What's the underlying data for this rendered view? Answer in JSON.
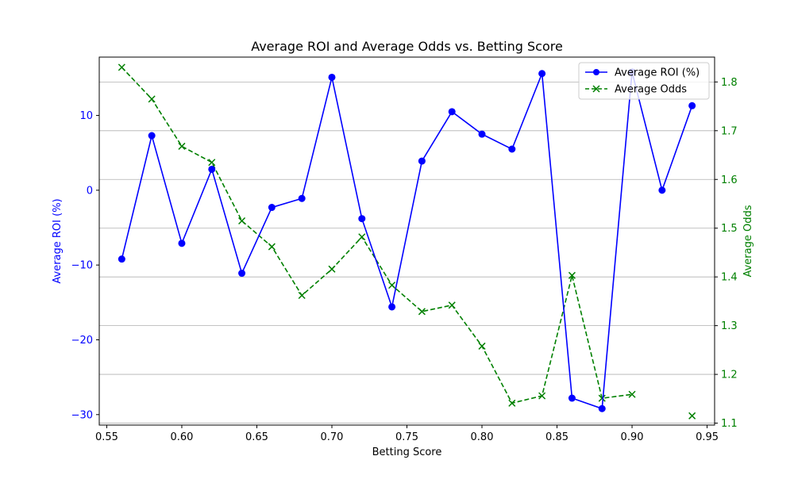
{
  "colors": {
    "roi": "#0000ff",
    "odds": "#008000",
    "axis": "#000000",
    "grid": "#b0b0b0",
    "legend_border": "#cccccc"
  },
  "chart_data": {
    "type": "line",
    "title": "Average ROI and Average Odds vs. Betting Score",
    "xlabel": "Betting Score",
    "x": [
      0.56,
      0.58,
      0.6,
      0.62,
      0.64,
      0.66,
      0.68,
      0.7,
      0.72,
      0.74,
      0.76,
      0.78,
      0.8,
      0.82,
      0.84,
      0.86,
      0.88,
      0.9,
      0.92,
      0.94
    ],
    "xlim": [
      0.545,
      0.955
    ],
    "xticks": [
      0.55,
      0.6,
      0.65,
      0.7,
      0.75,
      0.8,
      0.85,
      0.9,
      0.95
    ],
    "xtick_labels": [
      "0.55",
      "0.60",
      "0.65",
      "0.70",
      "0.75",
      "0.80",
      "0.85",
      "0.90",
      "0.95"
    ],
    "y_left": {
      "label": "Average ROI (%)",
      "lim": [
        -31.4,
        17.8
      ],
      "ticks": [
        -30,
        -20,
        -10,
        0,
        10
      ],
      "tick_labels": [
        "−30",
        "−20",
        "−10",
        "0",
        "10"
      ]
    },
    "y_right": {
      "label": "Average Odds",
      "lim": [
        1.096,
        1.851
      ],
      "ticks": [
        1.1,
        1.2,
        1.3,
        1.4,
        1.5,
        1.6,
        1.7,
        1.8
      ],
      "tick_labels": [
        "1.1",
        "1.2",
        "1.3",
        "1.4",
        "1.5",
        "1.6",
        "1.7",
        "1.8"
      ]
    },
    "grid": "horizontal lines at right-axis ticks",
    "legend_position": "top-right",
    "series": [
      {
        "name": "Average ROI (%)",
        "axis": "left",
        "marker": "circle",
        "linestyle": "solid",
        "values": [
          -9.2,
          7.3,
          -7.1,
          2.8,
          -11.1,
          -2.3,
          -1.1,
          15.1,
          -3.8,
          -15.6,
          3.9,
          10.5,
          7.5,
          5.5,
          15.6,
          -27.8,
          -29.2,
          15.8,
          0.0,
          11.3
        ]
      },
      {
        "name": "Average Odds",
        "axis": "right",
        "marker": "x",
        "linestyle": "dashed",
        "values": [
          1.83,
          1.765,
          1.668,
          1.635,
          1.515,
          1.462,
          1.362,
          1.416,
          1.482,
          1.383,
          1.329,
          1.342,
          1.258,
          1.141,
          1.156,
          1.403,
          1.151,
          1.159,
          null,
          1.115
        ]
      }
    ]
  }
}
